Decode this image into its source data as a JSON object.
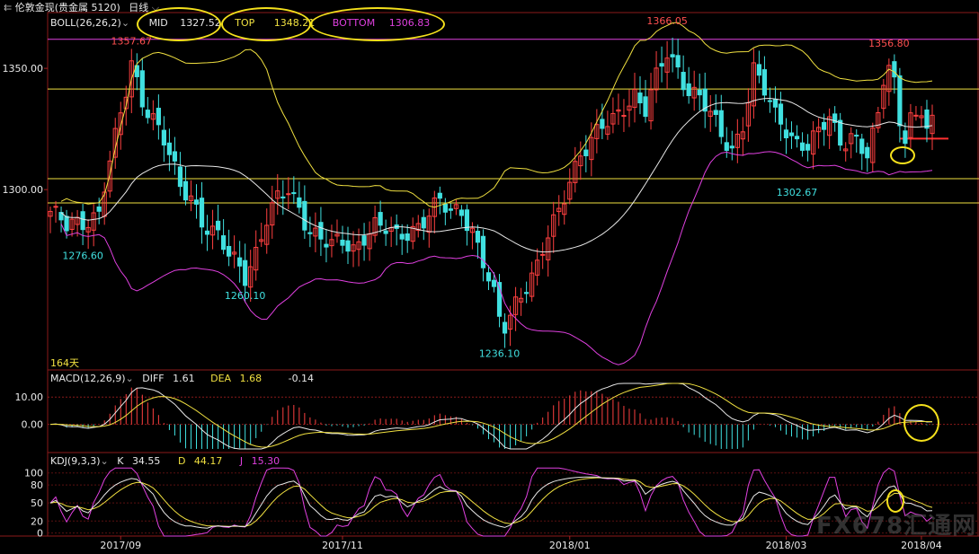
{
  "window": {
    "title": "伦敦金现(贵金属 5120)",
    "period": "日线",
    "back_icon": "back-arrow-icon"
  },
  "boll_header": {
    "name": "BOLL(26,26,2)",
    "mid_label": "MID",
    "mid_value": "1327.52",
    "top_label": "TOP",
    "top_value": "1348.21",
    "bottom_label": "BOTTOM",
    "bottom_value": "1306.83"
  },
  "macd_header": {
    "name": "MACD(12,26,9)",
    "diff_label": "DIFF",
    "diff_value": "1.61",
    "dea_label": "DEA",
    "dea_value": "1.68",
    "macd_value": "-0.14"
  },
  "kdj_header": {
    "name": "KDJ(9,3,3)",
    "k_label": "K",
    "k_value": "34.55",
    "d_label": "D",
    "d_value": "44.17",
    "j_label": "J",
    "j_value": "15.30"
  },
  "days_label": "164天",
  "watermark": "FX678汇通网",
  "colors": {
    "up": "#ff4040",
    "down": "#40e0e0",
    "mid": "#e8e8e8",
    "upper_band": "#f0e040",
    "lower_band": "#e040e0",
    "hline": "#f0e040",
    "resistance": "#e040e0",
    "circle": "#f5e11c"
  },
  "chart_data": {
    "type": "candlestick",
    "price_axis": {
      "range": [
        1226,
        1373
      ],
      "ticks": [
        1300,
        1350
      ],
      "tick_labels": [
        "1300.00",
        "1350.00"
      ]
    },
    "macd_axis": {
      "range": [
        -10,
        16
      ],
      "ticks": [
        0,
        10
      ],
      "tick_labels": [
        "0.00",
        "10.00"
      ]
    },
    "kdj_axis": {
      "range": [
        -5,
        110
      ],
      "ticks": [
        0,
        20,
        50,
        80,
        100
      ],
      "tick_labels": [
        "0",
        "20",
        "50",
        "80",
        "100"
      ]
    },
    "x_labels": [
      {
        "index": 13,
        "text": "2017/09"
      },
      {
        "index": 54,
        "text": "2017/11"
      },
      {
        "index": 96,
        "text": "2018/01"
      },
      {
        "index": 136,
        "text": "2018/03"
      },
      {
        "index": 161,
        "text": "2018/04"
      }
    ],
    "horizontal_lines": [
      1362,
      1341.5,
      1304.5,
      1294.5
    ],
    "annotations": [
      {
        "index": 15,
        "price": 1357.67,
        "text": "1357.67",
        "color": "red",
        "pos": "above"
      },
      {
        "index": 114,
        "price": 1366.05,
        "text": "1366.05",
        "color": "red",
        "pos": "above"
      },
      {
        "index": 155,
        "price": 1356.8,
        "text": "1356.80",
        "color": "red",
        "pos": "above"
      },
      {
        "index": 6,
        "price": 1276.6,
        "text": "1276.60",
        "color": "cyan",
        "pos": "below"
      },
      {
        "index": 36,
        "price": 1260.1,
        "text": "1260.10",
        "color": "cyan",
        "pos": "below"
      },
      {
        "index": 83,
        "price": 1236.1,
        "text": "1236.10",
        "color": "cyan",
        "pos": "below"
      },
      {
        "index": 138,
        "price": 1302.67,
        "text": "1302.67",
        "color": "cyan",
        "pos": "below"
      }
    ],
    "price_anchors": [
      [
        0,
        1291
      ],
      [
        3,
        1284
      ],
      [
        6,
        1287
      ],
      [
        9,
        1291
      ],
      [
        10,
        1302
      ],
      [
        12,
        1320
      ],
      [
        14,
        1340
      ],
      [
        15,
        1352
      ],
      [
        17,
        1338
      ],
      [
        19,
        1330
      ],
      [
        21,
        1320
      ],
      [
        24,
        1300
      ],
      [
        26,
        1298
      ],
      [
        28,
        1288
      ],
      [
        31,
        1280
      ],
      [
        33,
        1272
      ],
      [
        35,
        1268
      ],
      [
        36,
        1265
      ],
      [
        38,
        1275
      ],
      [
        40,
        1288
      ],
      [
        42,
        1295
      ],
      [
        44,
        1299
      ],
      [
        46,
        1293
      ],
      [
        48,
        1284
      ],
      [
        50,
        1280
      ],
      [
        52,
        1276
      ],
      [
        54,
        1278
      ],
      [
        56,
        1276
      ],
      [
        58,
        1282
      ],
      [
        60,
        1285
      ],
      [
        62,
        1283
      ],
      [
        64,
        1280
      ],
      [
        66,
        1283
      ],
      [
        68,
        1286
      ],
      [
        70,
        1290
      ],
      [
        72,
        1294
      ],
      [
        74,
        1290
      ],
      [
        76,
        1292
      ],
      [
        78,
        1284
      ],
      [
        80,
        1270
      ],
      [
        82,
        1255
      ],
      [
        83,
        1245
      ],
      [
        84,
        1243
      ],
      [
        86,
        1254
      ],
      [
        88,
        1262
      ],
      [
        90,
        1268
      ],
      [
        92,
        1280
      ],
      [
        94,
        1290
      ],
      [
        96,
        1305
      ],
      [
        98,
        1316
      ],
      [
        100,
        1320
      ],
      [
        102,
        1325
      ],
      [
        104,
        1328
      ],
      [
        106,
        1335
      ],
      [
        108,
        1340
      ],
      [
        110,
        1333
      ],
      [
        112,
        1345
      ],
      [
        114,
        1356
      ],
      [
        116,
        1350
      ],
      [
        118,
        1342
      ],
      [
        120,
        1338
      ],
      [
        122,
        1330
      ],
      [
        124,
        1322
      ],
      [
        126,
        1317
      ],
      [
        128,
        1328
      ],
      [
        130,
        1349
      ],
      [
        132,
        1340
      ],
      [
        134,
        1330
      ],
      [
        136,
        1326
      ],
      [
        138,
        1320
      ],
      [
        140,
        1318
      ],
      [
        142,
        1322
      ],
      [
        144,
        1330
      ],
      [
        146,
        1320
      ],
      [
        148,
        1324
      ],
      [
        150,
        1316
      ],
      [
        151,
        1314
      ],
      [
        153,
        1328
      ],
      [
        154,
        1345
      ],
      [
        155,
        1353
      ],
      [
        156,
        1345
      ],
      [
        157,
        1328
      ],
      [
        158,
        1324
      ],
      [
        159,
        1332
      ],
      [
        160,
        1327
      ],
      [
        161,
        1330
      ],
      [
        162,
        1326
      ],
      [
        163,
        1327
      ]
    ],
    "candle_count": 164
  }
}
